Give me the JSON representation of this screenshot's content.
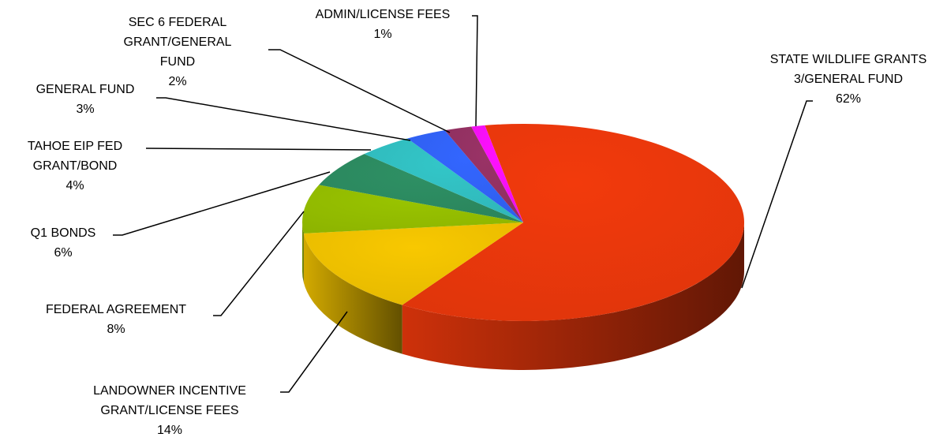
{
  "chart_data": {
    "type": "pie3d",
    "categories": [
      "STATE WILDLIFE GRANTS 3/GENERAL FUND",
      "LANDOWNER INCENTIVE GRANT/LICENSE FEES",
      "FEDERAL AGREEMENT",
      "Q1 BONDS",
      "TAHOE EIP FED GRANT/BOND",
      "GENERAL FUND",
      "SEC 6 FEDERAL GRANT/GENERAL FUND",
      "ADMIN/LICENSE FEES"
    ],
    "values": [
      62,
      14,
      8,
      6,
      4,
      3,
      2,
      1
    ],
    "value_labels": [
      "62%",
      "14%",
      "8%",
      "6%",
      "4%",
      "3%",
      "2%",
      "1%"
    ],
    "colors": [
      "#f23a0c",
      "#f8c800",
      "#99c400",
      "#2e9064",
      "#33c6c8",
      "#3366ff",
      "#993366",
      "#ff10ff"
    ]
  }
}
